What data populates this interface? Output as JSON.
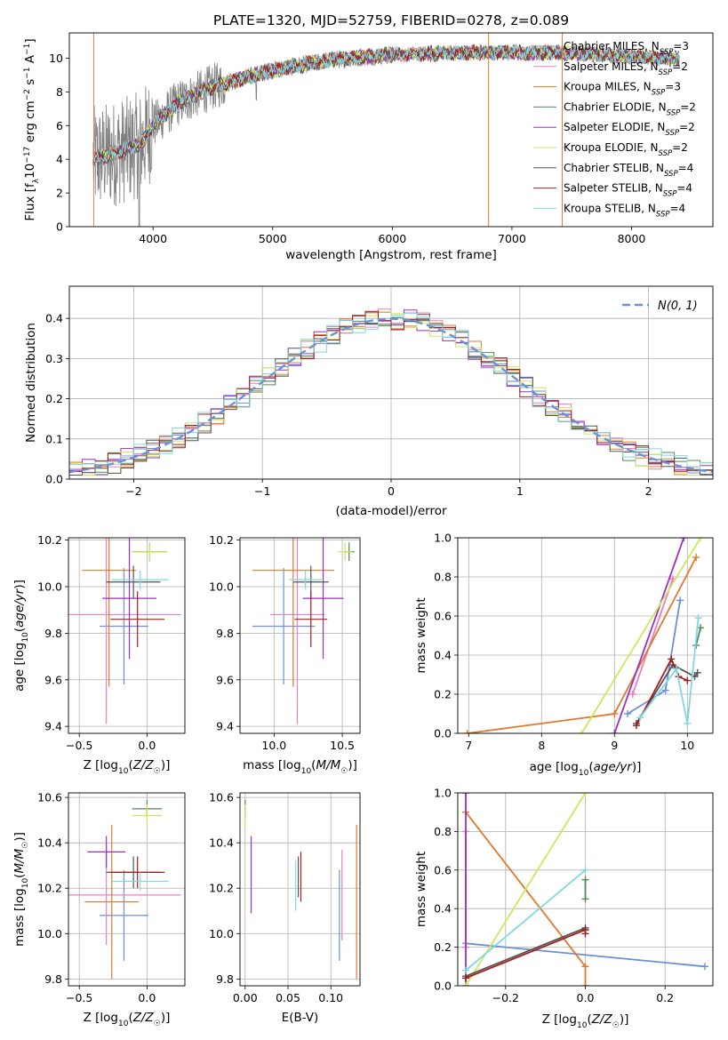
{
  "figure_title": "PLATE=1320, MJD=52759, FIBERID=0278, z=0.089",
  "colors": {
    "Chabrier MILES": "#6b8fdc",
    "Salpeter MILES": "#e87fc0",
    "Kroupa MILES": "#e2782a",
    "Chabrier ELODIE": "#4f8a5c",
    "Salpeter ELODIE": "#9b30c0",
    "Kroupa ELODIE": "#cde85a",
    "Chabrier STELIB": "#555555",
    "Salpeter STELIB": "#a51d1d",
    "Kroupa STELIB": "#7fd8e0",
    "data": "#808080",
    "gauss": "#6a93d6"
  },
  "chart_data": [
    {
      "id": "spectrum",
      "type": "line",
      "xlabel": "wavelength [Angstrom, rest frame]",
      "ylabel": "Flux [f$_\\lambda$10$^{-17}$ erg cm$^{-2}$ s$^{-1}$ A$^{-1}$]",
      "xlim": [
        3300,
        8680
      ],
      "ylim": [
        0,
        11.5
      ],
      "xticks": [
        4000,
        5000,
        6000,
        7000,
        8000
      ],
      "yticks": [
        0,
        2,
        4,
        6,
        8,
        10
      ],
      "legend_position": "top-right",
      "legend": [
        {
          "model": "Chabrier MILES",
          "label": "Chabrier MILES, N",
          "sub": "SSP",
          "tail": "=3"
        },
        {
          "model": "Salpeter MILES",
          "label": "Salpeter MILES, N",
          "sub": "SSP",
          "tail": "=2"
        },
        {
          "model": "Kroupa MILES",
          "label": "Kroupa MILES, N",
          "sub": "SSP",
          "tail": "=3"
        },
        {
          "model": "Chabrier ELODIE",
          "label": "Chabrier ELODIE, N",
          "sub": "SSP",
          "tail": "=2"
        },
        {
          "model": "Salpeter ELODIE",
          "label": "Salpeter ELODIE, N",
          "sub": "SSP",
          "tail": "=2"
        },
        {
          "model": "Kroupa ELODIE",
          "label": "Kroupa ELODIE, N",
          "sub": "SSP",
          "tail": "=2"
        },
        {
          "model": "Chabrier STELIB",
          "label": "Chabrier STELIB, N",
          "sub": "SSP",
          "tail": "=4"
        },
        {
          "model": "Salpeter STELIB",
          "label": "Salpeter STELIB, N",
          "sub": "SSP",
          "tail": "=4"
        },
        {
          "model": "Kroupa STELIB",
          "label": "Kroupa STELIB, N",
          "sub": "SSP",
          "tail": "=4"
        }
      ],
      "continuum": {
        "x": [
          3500,
          3700,
          3900,
          4000,
          4200,
          4500,
          4800,
          5000,
          5500,
          6000,
          6500,
          7000,
          7500,
          8000,
          8400
        ],
        "y": [
          4.0,
          4.4,
          4.9,
          6.0,
          7.3,
          8.3,
          8.9,
          9.3,
          9.9,
          10.2,
          10.3,
          10.35,
          10.3,
          10.1,
          9.95
        ]
      }
    },
    {
      "id": "residuals",
      "type": "bar",
      "xlabel": "(data-model)/error",
      "ylabel": "Normed distribution",
      "xlim": [
        -2.5,
        2.5
      ],
      "ylim": [
        0,
        0.48
      ],
      "xticks": [
        -2,
        -1,
        0,
        1,
        2
      ],
      "yticks": [
        0.0,
        0.1,
        0.2,
        0.3,
        0.4
      ],
      "legend_position": "top-right",
      "gauss_label": "N(0, 1)",
      "bins": 50
    },
    {
      "id": "age_vs_Z",
      "type": "scatter",
      "xlabel": "Z [log10(Z/Z☉)]",
      "ylabel": "age  [log10(age/yr)]",
      "xlim": [
        -0.58,
        0.28
      ],
      "ylim": [
        9.37,
        10.21
      ],
      "xticks": [
        -0.5,
        0.0
      ],
      "yticks": [
        9.4,
        9.6,
        9.8,
        10.0,
        10.2
      ],
      "points": [
        {
          "model": "Chabrier MILES",
          "x": -0.17,
          "xerr": 0.18,
          "y": 9.83,
          "yerr": 0.25
        },
        {
          "model": "Salpeter MILES",
          "x": -0.3,
          "xerr": 0.55,
          "y": 9.88,
          "yerr": 0.47
        },
        {
          "model": "Kroupa MILES",
          "x": -0.28,
          "xerr": 0.2,
          "y": 10.07,
          "yerr": 0.5
        },
        {
          "model": "Chabrier ELODIE",
          "x": 0.02,
          "xerr": 0.13,
          "y": 10.15,
          "yerr": 0.04
        },
        {
          "model": "Salpeter ELODIE",
          "x": -0.13,
          "xerr": 0.2,
          "y": 9.95,
          "yerr": 0.26
        },
        {
          "model": "Kroupa ELODIE",
          "x": 0.02,
          "xerr": 0.13,
          "y": 10.15,
          "yerr": 0.04
        },
        {
          "model": "Chabrier STELIB",
          "x": -0.1,
          "xerr": 0.2,
          "y": 10.02,
          "yerr": 0.07
        },
        {
          "model": "Salpeter STELIB",
          "x": -0.07,
          "xerr": 0.2,
          "y": 9.86,
          "yerr": 0.12
        },
        {
          "model": "Kroupa STELIB",
          "x": -0.05,
          "xerr": 0.21,
          "y": 10.03,
          "yerr": 0.04
        }
      ]
    },
    {
      "id": "age_vs_mass",
      "type": "scatter",
      "xlabel": "mass [log10(M/M☉)]",
      "ylabel": "",
      "xlim": [
        9.75,
        10.63
      ],
      "ylim": [
        9.37,
        10.21
      ],
      "xticks": [
        10.0,
        10.5
      ],
      "yticks": [
        9.4,
        9.6,
        9.8,
        10.0,
        10.2
      ],
      "points": [
        {
          "model": "Chabrier MILES",
          "x": 10.07,
          "xerr": 0.23,
          "y": 9.83,
          "yerr": 0.25
        },
        {
          "model": "Salpeter MILES",
          "x": 10.17,
          "xerr": 0.2,
          "y": 9.88,
          "yerr": 0.47
        },
        {
          "model": "Kroupa MILES",
          "x": 10.14,
          "xerr": 0.3,
          "y": 10.07,
          "yerr": 0.5
        },
        {
          "model": "Chabrier ELODIE",
          "x": 10.55,
          "xerr": 0.04,
          "y": 10.15,
          "yerr": 0.04
        },
        {
          "model": "Salpeter ELODIE",
          "x": 10.36,
          "xerr": 0.15,
          "y": 9.95,
          "yerr": 0.26
        },
        {
          "model": "Kroupa ELODIE",
          "x": 10.52,
          "xerr": 0.05,
          "y": 10.15,
          "yerr": 0.04
        },
        {
          "model": "Chabrier STELIB",
          "x": 10.27,
          "xerr": 0.13,
          "y": 10.02,
          "yerr": 0.07
        },
        {
          "model": "Salpeter STELIB",
          "x": 10.27,
          "xerr": 0.12,
          "y": 9.86,
          "yerr": 0.12
        },
        {
          "model": "Kroupa STELIB",
          "x": 10.23,
          "xerr": 0.12,
          "y": 10.03,
          "yerr": 0.04
        }
      ]
    },
    {
      "id": "mass_vs_Z",
      "type": "scatter",
      "xlabel": "Z [log10(Z/Z☉)]",
      "ylabel": "mass [log10(M/M☉)]",
      "xlim": [
        -0.58,
        0.28
      ],
      "ylim": [
        9.77,
        10.62
      ],
      "xticks": [
        -0.5,
        0.0
      ],
      "yticks": [
        9.8,
        10.0,
        10.2,
        10.4,
        10.6
      ],
      "points": [
        {
          "model": "Chabrier MILES",
          "x": -0.17,
          "xerr": 0.18,
          "y": 10.08,
          "yerr": 0.2
        },
        {
          "model": "Salpeter MILES",
          "x": -0.3,
          "xerr": 0.55,
          "y": 10.17,
          "yerr": 0.22
        },
        {
          "model": "Kroupa MILES",
          "x": -0.26,
          "xerr": 0.2,
          "y": 10.14,
          "yerr": 0.34
        },
        {
          "model": "Chabrier ELODIE",
          "x": 0.0,
          "xerr": 0.11,
          "y": 10.55,
          "yerr": 0.04
        },
        {
          "model": "Salpeter ELODIE",
          "x": -0.3,
          "xerr": 0.14,
          "y": 10.36,
          "yerr": 0.07
        },
        {
          "model": "Kroupa ELODIE",
          "x": 0.0,
          "xerr": 0.11,
          "y": 10.52,
          "yerr": 0.05
        },
        {
          "model": "Chabrier STELIB",
          "x": -0.1,
          "xerr": 0.2,
          "y": 10.27,
          "yerr": 0.07
        },
        {
          "model": "Salpeter STELIB",
          "x": -0.07,
          "xerr": 0.2,
          "y": 10.27,
          "yerr": 0.07
        },
        {
          "model": "Kroupa STELIB",
          "x": -0.05,
          "xerr": 0.21,
          "y": 10.23,
          "yerr": 0.04
        }
      ]
    },
    {
      "id": "mass_vs_EBV",
      "type": "scatter",
      "xlabel": "E(B-V)",
      "ylabel": "",
      "xlim": [
        -0.006,
        0.134
      ],
      "ylim": [
        9.77,
        10.62
      ],
      "xticks": [
        0.0,
        0.05,
        0.1
      ],
      "xticklabels": [
        "0.00",
        "0.05",
        "0.10"
      ],
      "yticks": [
        9.8,
        10.0,
        10.2,
        10.4,
        10.6
      ],
      "points": [
        {
          "model": "Chabrier MILES",
          "x": 0.11,
          "y": 10.08,
          "yerr": 0.2
        },
        {
          "model": "Salpeter MILES",
          "x": 0.113,
          "y": 10.17,
          "yerr": 0.2
        },
        {
          "model": "Kroupa MILES",
          "x": 0.13,
          "y": 10.14,
          "yerr": 0.34
        },
        {
          "model": "Chabrier ELODIE",
          "x": 0.0,
          "y": 10.55,
          "yerr": 0.04
        },
        {
          "model": "Salpeter ELODIE",
          "x": 0.007,
          "y": 10.26,
          "yerr": 0.17
        },
        {
          "model": "Kroupa ELODIE",
          "x": 0.0,
          "y": 10.52,
          "yerr": 0.05
        },
        {
          "model": "Chabrier STELIB",
          "x": 0.062,
          "y": 10.25,
          "yerr": 0.09
        },
        {
          "model": "Salpeter STELIB",
          "x": 0.065,
          "y": 10.25,
          "yerr": 0.11
        },
        {
          "model": "Kroupa STELIB",
          "x": 0.059,
          "y": 10.21,
          "yerr": 0.11
        }
      ]
    },
    {
      "id": "weight_vs_age",
      "type": "line",
      "xlabel": "age  [log10(age/yr)]",
      "ylabel": "mass weight",
      "xlim": [
        6.85,
        10.35
      ],
      "ylim": [
        0,
        1
      ],
      "xticks": [
        7,
        8,
        9,
        10
      ],
      "yticks": [
        0.0,
        0.2,
        0.4,
        0.6,
        0.8,
        1.0
      ],
      "series": [
        {
          "model": "Chabrier MILES",
          "x": [
            9.18,
            9.7,
            9.9
          ],
          "y": [
            0.1,
            0.22,
            0.68
          ]
        },
        {
          "model": "Salpeter MILES",
          "x": [
            9.25,
            9.8
          ],
          "y": [
            0.2,
            0.79
          ]
        },
        {
          "model": "Kroupa MILES",
          "x": [
            6.98,
            9.0,
            10.12
          ],
          "y": [
            0.0,
            0.1,
            0.9
          ]
        },
        {
          "model": "Chabrier ELODIE",
          "x": [
            10.12,
            10.18
          ],
          "y": [
            0.45,
            0.54
          ]
        },
        {
          "model": "Salpeter ELODIE",
          "x": [
            9.0,
            9.95
          ],
          "y": [
            0.0,
            1.0
          ]
        },
        {
          "model": "Kroupa ELODIE",
          "x": [
            8.55,
            10.18
          ],
          "y": [
            0.0,
            1.0
          ]
        },
        {
          "model": "Chabrier STELIB",
          "x": [
            9.3,
            9.8,
            10.1,
            10.14
          ],
          "y": [
            0.05,
            0.35,
            0.29,
            0.31
          ]
        },
        {
          "model": "Salpeter STELIB",
          "x": [
            9.3,
            9.78,
            9.88,
            10.0
          ],
          "y": [
            0.04,
            0.38,
            0.29,
            0.27
          ]
        },
        {
          "model": "Kroupa STELIB",
          "x": [
            9.35,
            9.85,
            10.0,
            10.15
          ],
          "y": [
            0.08,
            0.33,
            0.05,
            0.59
          ]
        }
      ]
    },
    {
      "id": "weight_vs_Z",
      "type": "line",
      "xlabel": "Z [log10(Z/Z☉)]",
      "ylabel": "mass weight",
      "xlim": [
        -0.32,
        0.32
      ],
      "ylim": [
        0,
        1
      ],
      "xticks": [
        -0.2,
        0.0,
        0.2
      ],
      "xticklabels": [
        "−0.2",
        "0.0",
        "0.2"
      ],
      "yticks": [
        0.0,
        0.2,
        0.4,
        0.6,
        0.8,
        1.0
      ],
      "series": [
        {
          "model": "Chabrier MILES",
          "x": [
            -0.3,
            0.3
          ],
          "y": [
            0.22,
            0.1
          ]
        },
        {
          "model": "Salpeter MILES",
          "x": [
            -0.3,
            -0.3
          ],
          "y": [
            0.8,
            0.2
          ]
        },
        {
          "model": "Kroupa MILES",
          "x": [
            -0.3,
            0.0,
            0.0
          ],
          "y": [
            0.9,
            0.1,
            0.0
          ]
        },
        {
          "model": "Chabrier ELODIE",
          "x": [
            0.0,
            0.0
          ],
          "y": [
            0.45,
            0.55
          ]
        },
        {
          "model": "Salpeter ELODIE",
          "x": [
            -0.3,
            -0.3
          ],
          "y": [
            1.0,
            0.0
          ]
        },
        {
          "model": "Kroupa ELODIE",
          "x": [
            -0.3,
            0.0
          ],
          "y": [
            0.0,
            1.0
          ]
        },
        {
          "model": "Chabrier STELIB",
          "x": [
            -0.3,
            0.0,
            0.0
          ],
          "y": [
            0.05,
            0.3,
            0.29
          ]
        },
        {
          "model": "Salpeter STELIB",
          "x": [
            -0.3,
            0.0,
            0.0
          ],
          "y": [
            0.04,
            0.29,
            0.27
          ]
        },
        {
          "model": "Kroupa STELIB",
          "x": [
            -0.3,
            0.0
          ],
          "y": [
            0.08,
            0.6
          ]
        }
      ]
    }
  ]
}
